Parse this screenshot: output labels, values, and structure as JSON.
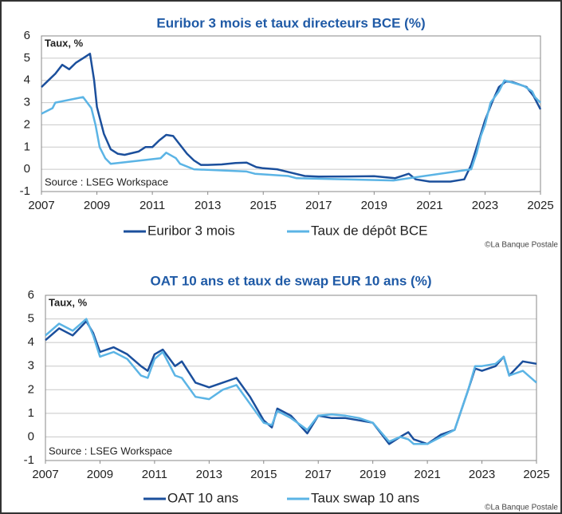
{
  "chart_data": [
    {
      "type": "line",
      "title": "Euribor 3 mois et taux directeurs BCE (%)",
      "annotations": [
        "Taux, %",
        "Source : LSEG Workspace"
      ],
      "credit": "©La Banque Postale",
      "xlim": [
        2007,
        2025
      ],
      "xticks": [
        2007,
        2009,
        2011,
        2013,
        2015,
        2017,
        2019,
        2021,
        2023,
        2025
      ],
      "ylim": [
        -1,
        6
      ],
      "yticks": [
        -1,
        0,
        1,
        2,
        3,
        4,
        5,
        6
      ],
      "grid": true,
      "series": [
        {
          "name": "Euribor 3 mois",
          "color": "#1b4f9c",
          "x": [
            2007,
            2007.25,
            2007.5,
            2007.75,
            2008,
            2008.25,
            2008.5,
            2008.75,
            2008.9,
            2009,
            2009.25,
            2009.5,
            2009.75,
            2010,
            2010.5,
            2010.75,
            2011,
            2011.25,
            2011.5,
            2011.75,
            2012,
            2012.25,
            2012.5,
            2012.75,
            2013,
            2013.5,
            2014,
            2014.4,
            2014.75,
            2015,
            2015.5,
            2016,
            2016.5,
            2017,
            2018,
            2019,
            2019.75,
            2020.25,
            2020.5,
            2021,
            2021.75,
            2022.25,
            2022.5,
            2022.75,
            2023,
            2023.25,
            2023.5,
            2023.75,
            2024,
            2024.5,
            2024.75,
            2025
          ],
          "values": [
            3.7,
            4.0,
            4.3,
            4.7,
            4.5,
            4.8,
            5.0,
            5.2,
            4.0,
            2.8,
            1.6,
            0.9,
            0.7,
            0.65,
            0.8,
            1.0,
            1.0,
            1.3,
            1.55,
            1.5,
            1.1,
            0.7,
            0.4,
            0.2,
            0.2,
            0.22,
            0.28,
            0.3,
            0.1,
            0.05,
            0,
            -0.15,
            -0.3,
            -0.33,
            -0.32,
            -0.31,
            -0.4,
            -0.2,
            -0.45,
            -0.55,
            -0.55,
            -0.45,
            0.2,
            1.2,
            2.2,
            3.0,
            3.7,
            3.95,
            3.92,
            3.7,
            3.3,
            2.7
          ]
        },
        {
          "name": "Taux de dépôt BCE",
          "color": "#5bb4e5",
          "x": [
            2007,
            2007.4,
            2007.5,
            2008.5,
            2008.8,
            2008.95,
            2009.1,
            2009.3,
            2009.5,
            2011.3,
            2011.5,
            2011.85,
            2012,
            2012.5,
            2014.4,
            2014.7,
            2015.9,
            2016.2,
            2019.7,
            2022.5,
            2022.7,
            2022.85,
            2023,
            2023.2,
            2023.5,
            2023.7,
            2024.4,
            2024.7,
            2024.8,
            2025
          ],
          "values": [
            2.5,
            2.75,
            3.0,
            3.25,
            2.75,
            2.0,
            1.0,
            0.5,
            0.25,
            0.5,
            0.75,
            0.5,
            0.25,
            0,
            -0.1,
            -0.2,
            -0.3,
            -0.4,
            -0.5,
            0,
            0.75,
            1.5,
            2.0,
            3.0,
            3.5,
            4.0,
            3.75,
            3.5,
            3.25,
            3.0
          ]
        }
      ]
    },
    {
      "type": "line",
      "title": "OAT 10 ans et taux de swap EUR 10 ans (%)",
      "annotations": [
        "Taux, %",
        "Source : LSEG Workspace"
      ],
      "credit": "©La Banque Postale",
      "xlim": [
        2007,
        2025
      ],
      "xticks": [
        2007,
        2009,
        2011,
        2013,
        2015,
        2017,
        2019,
        2021,
        2023,
        2025
      ],
      "ylim": [
        -1,
        6
      ],
      "yticks": [
        -1,
        0,
        1,
        2,
        3,
        4,
        5,
        6
      ],
      "grid": true,
      "series": [
        {
          "name": "OAT 10 ans",
          "color": "#1b4f9c",
          "x": [
            2007,
            2007.5,
            2008,
            2008.5,
            2008.75,
            2009,
            2009.5,
            2010,
            2010.5,
            2010.75,
            2011,
            2011.3,
            2011.75,
            2012,
            2012.5,
            2013,
            2013.5,
            2014,
            2014.5,
            2015,
            2015.3,
            2015.5,
            2016,
            2016.6,
            2017,
            2017.5,
            2018,
            2018.5,
            2019,
            2019.6,
            2020,
            2020.3,
            2020.5,
            2021,
            2021.5,
            2022,
            2022.5,
            2022.75,
            2023,
            2023.5,
            2023.8,
            2024,
            2024.5,
            2025
          ],
          "values": [
            4.1,
            4.6,
            4.3,
            4.9,
            4.4,
            3.6,
            3.8,
            3.5,
            3.0,
            2.8,
            3.5,
            3.7,
            3.0,
            3.2,
            2.3,
            2.1,
            2.3,
            2.5,
            1.7,
            0.7,
            0.4,
            1.2,
            0.9,
            0.15,
            0.9,
            0.8,
            0.8,
            0.7,
            0.6,
            -0.3,
            0,
            0.2,
            -0.1,
            -0.3,
            0.1,
            0.3,
            2.0,
            2.9,
            2.8,
            3.0,
            3.4,
            2.6,
            3.2,
            3.1
          ]
        },
        {
          "name": "Taux swap 10 ans",
          "color": "#5bb4e5",
          "x": [
            2007,
            2007.5,
            2008,
            2008.5,
            2008.75,
            2009,
            2009.5,
            2010,
            2010.5,
            2010.75,
            2011,
            2011.3,
            2011.75,
            2012,
            2012.5,
            2013,
            2013.5,
            2014,
            2014.5,
            2015,
            2015.3,
            2015.5,
            2016,
            2016.6,
            2017,
            2017.5,
            2018,
            2018.5,
            2019,
            2019.6,
            2020,
            2020.3,
            2020.5,
            2021,
            2021.5,
            2022,
            2022.5,
            2022.75,
            2023,
            2023.5,
            2023.8,
            2024,
            2024.5,
            2025
          ],
          "values": [
            4.3,
            4.8,
            4.5,
            5.0,
            4.3,
            3.4,
            3.6,
            3.3,
            2.6,
            2.5,
            3.3,
            3.6,
            2.6,
            2.5,
            1.7,
            1.6,
            2.0,
            2.2,
            1.4,
            0.6,
            0.5,
            1.1,
            0.8,
            0.3,
            0.9,
            0.95,
            0.9,
            0.8,
            0.6,
            -0.2,
            0,
            -0.1,
            -0.3,
            -0.3,
            0,
            0.3,
            2.0,
            3.0,
            3.0,
            3.1,
            3.4,
            2.6,
            2.8,
            2.3
          ]
        }
      ]
    }
  ]
}
